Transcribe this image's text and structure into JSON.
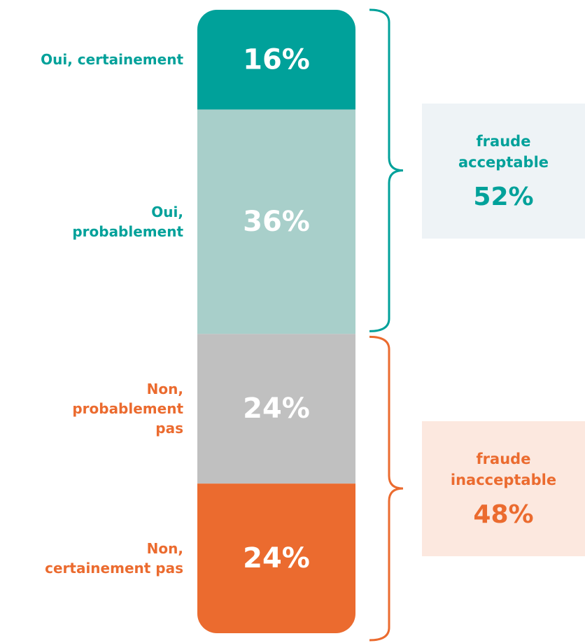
{
  "chart_data": {
    "type": "stacked-bar",
    "categories": [
      "Oui, certainement",
      "Oui, probablement",
      "Non, probablement pas",
      "Non, certainement pas"
    ],
    "values": [
      16,
      36,
      24,
      24
    ],
    "value_labels": [
      "16%",
      "36%",
      "24%",
      "24%"
    ],
    "colors": [
      "#00a19a",
      "#a8cfca",
      "#c0c0c0",
      "#eb6b2f"
    ],
    "label_colors": [
      "#00a19a",
      "#00a19a",
      "#eb6b2f",
      "#eb6b2f"
    ],
    "groups": [
      {
        "name": "fraude acceptable",
        "value": 52,
        "value_label": "52%",
        "color": "#00a19a",
        "background": "#eef3f6"
      },
      {
        "name": "fraude inacceptable",
        "value": 48,
        "value_label": "48%",
        "color": "#eb6b2f",
        "background": "#fce8df"
      }
    ]
  }
}
